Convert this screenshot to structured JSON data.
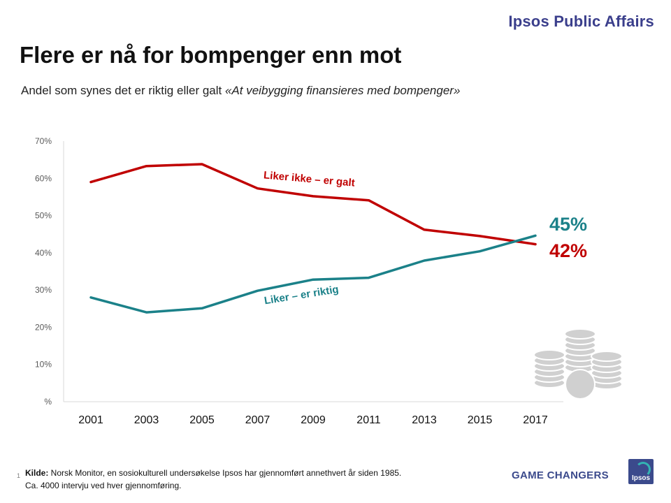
{
  "header": {
    "brand": "Ipsos Public Affairs",
    "title": "Flere er nå for bompenger enn mot",
    "subtitle_plain": "Andel som synes det er riktig eller galt ",
    "subtitle_quote": "«At veibygging finansieres med bompenger»"
  },
  "chart_data": {
    "type": "line",
    "title": "Flere er nå for bompenger enn mot",
    "categories": [
      "2001",
      "2003",
      "2005",
      "2007",
      "2009",
      "2011",
      "2013",
      "2015",
      "2017"
    ],
    "yticks": [
      "%",
      "10%",
      "20%",
      "30%",
      "40%",
      "50%",
      "60%",
      "70%"
    ],
    "ylim": [
      0,
      70
    ],
    "grid": false,
    "series": [
      {
        "name": "Liker ikke – er galt",
        "color": "#c00000",
        "values": [
          59,
          63.3,
          63.8,
          57.3,
          55.2,
          54.1,
          46.2,
          44.5,
          42.3
        ],
        "end_label": "42%"
      },
      {
        "name": "Liker – er riktig",
        "color": "#1b8189",
        "values": [
          28,
          24,
          25.1,
          29.8,
          32.8,
          33.3,
          37.9,
          40.4,
          44.6
        ],
        "end_label": "45%"
      }
    ]
  },
  "footer": {
    "source_label": "Kilde:",
    "source_text": " Norsk Monitor, en sosiokulturell undersøkelse Ipsos har gjennomført annethvert år siden 1985.",
    "note": "Ca. 4000 intervju ved hver gjennomføring.",
    "page_number": "1",
    "tagline": "GAME CHANGERS",
    "logo_text": "Ipsos"
  }
}
